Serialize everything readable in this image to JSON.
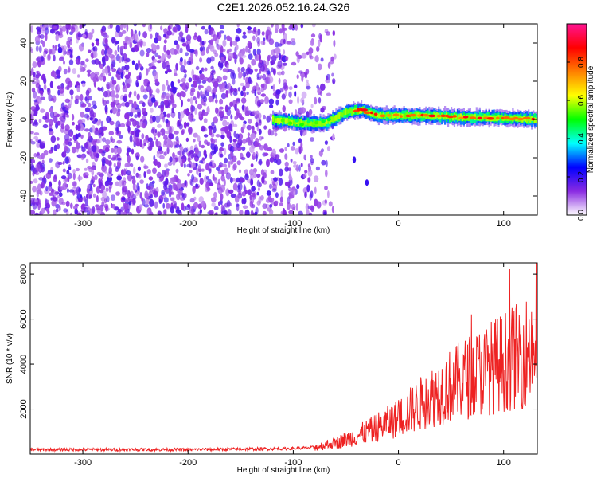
{
  "title": "C2E1.2026.052.16.24.G26",
  "chart_data": [
    {
      "type": "heatmap",
      "xlabel": "Height of straight line (km)",
      "ylabel": "Frequency (Hz)",
      "xlim": [
        -350,
        132
      ],
      "ylim": [
        -50,
        50
      ],
      "xticks": [
        -300,
        -200,
        -100,
        0,
        100
      ],
      "yticks": [
        -40,
        -20,
        0,
        20,
        40
      ],
      "colorbar": {
        "label": "Normalized spectral amplitude",
        "range": [
          0,
          1
        ],
        "ticks": [
          0.0,
          0.2,
          0.4,
          0.6,
          0.8
        ],
        "colors": [
          "#ffffff",
          "#8a2be2",
          "#0000ff",
          "#00ffff",
          "#00ff00",
          "#ffff00",
          "#ff7f00",
          "#ff0000",
          "#ff1493"
        ]
      },
      "features": {
        "noise_region_x": [
          -350,
          -60
        ],
        "signal_start_x": -120,
        "signal_center_freq_hz": [
          [
            -120,
            0
          ],
          [
            -90,
            -2
          ],
          [
            -70,
            -2
          ],
          [
            -50,
            4
          ],
          [
            -35,
            5
          ],
          [
            -20,
            2
          ],
          [
            0,
            2
          ],
          [
            30,
            2
          ],
          [
            60,
            1
          ],
          [
            90,
            1
          ],
          [
            132,
            0
          ]
        ],
        "isolated_blobs": [
          {
            "x": -42,
            "freq": -21
          },
          {
            "x": -30,
            "freq": -33
          }
        ]
      }
    },
    {
      "type": "line",
      "xlabel": "Height of straight line (km)",
      "ylabel": "SNR (10 * v/v)",
      "xlim": [
        -350,
        132
      ],
      "ylim": [
        0,
        8500
      ],
      "xticks": [
        -300,
        -200,
        -100,
        0,
        100
      ],
      "yticks": [
        2000,
        4000,
        6000,
        8000
      ],
      "series": [
        {
          "name": "SNR",
          "color": "#ee2222",
          "x": [
            -350,
            -300,
            -250,
            -200,
            -150,
            -100,
            -80,
            -60,
            -40,
            -20,
            0,
            20,
            40,
            60,
            80,
            100,
            120,
            132
          ],
          "y": [
            200,
            200,
            200,
            200,
            220,
            250,
            300,
            500,
            800,
            1200,
            1600,
            2200,
            2800,
            3300,
            3700,
            4100,
            4500,
            5000
          ]
        }
      ]
    }
  ]
}
